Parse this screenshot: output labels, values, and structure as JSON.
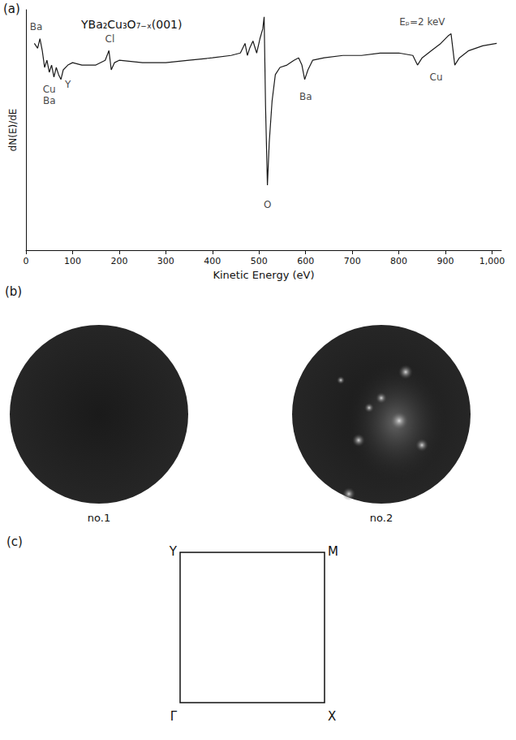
{
  "chart_data": {
    "type": "line",
    "title": "YBa₂Cu₃O₇₋ₓ(001)",
    "x_label": "Kinetic Energy (eV)",
    "y_label": "dN(E)/dE",
    "x": [
      18,
      25,
      30,
      35,
      40,
      45,
      50,
      55,
      60,
      65,
      70,
      75,
      80,
      90,
      100,
      120,
      150,
      170,
      178,
      183,
      190,
      200,
      250,
      300,
      350,
      400,
      440,
      460,
      470,
      475,
      480,
      487,
      495,
      502,
      508,
      511,
      514,
      518,
      522,
      528,
      535,
      545,
      560,
      575,
      585,
      592,
      598,
      605,
      615,
      640,
      680,
      720,
      760,
      800,
      830,
      840,
      850,
      870,
      890,
      905,
      912,
      920,
      930,
      950,
      980,
      1010
    ],
    "values": [
      86,
      84,
      88,
      83,
      76,
      79,
      74,
      77,
      72,
      76,
      73,
      71,
      75,
      77,
      78,
      77,
      77,
      79,
      83,
      75,
      78,
      79,
      78,
      78,
      79,
      80,
      81,
      82,
      86,
      81,
      84,
      87,
      82,
      88,
      92,
      97,
      60,
      27,
      45,
      62,
      73,
      76,
      77,
      79,
      80,
      77,
      71,
      75,
      79,
      80,
      81,
      81,
      82,
      82,
      81,
      77,
      80,
      83,
      86,
      89,
      90,
      77,
      80,
      83,
      85,
      86
    ],
    "color": "#1a1a1a",
    "xlim": [
      0,
      1020
    ],
    "xticks": [
      0,
      100,
      200,
      300,
      400,
      500,
      600,
      700,
      800,
      900,
      1000
    ],
    "ylim": [
      0,
      100
    ],
    "yticks": [],
    "tick_labels": "x",
    "grid": false,
    "annotations": [
      {
        "text": "Ba",
        "x": 22,
        "y": 93
      },
      {
        "text": "Cu",
        "x": 50,
        "y": 67
      },
      {
        "text": "Ba",
        "x": 50,
        "y": 62
      },
      {
        "text": "Y",
        "x": 90,
        "y": 69
      },
      {
        "text": "Cl",
        "x": 180,
        "y": 88
      },
      {
        "text": "O",
        "x": 518,
        "y": 19
      },
      {
        "text": "Ba",
        "x": 600,
        "y": 64
      },
      {
        "text": "Cu",
        "x": 880,
        "y": 72
      },
      {
        "text": "Eₚ=2 keV",
        "x": 850,
        "y": 95
      }
    ]
  },
  "panels": [
    {
      "label": "(a)"
    },
    {
      "label": "(b)",
      "images": [
        "no.1",
        "no.2"
      ]
    },
    {
      "label": "(c)",
      "corners": {
        "top_left": "Y",
        "top_right": "M",
        "bottom_left": "Γ",
        "bottom_right": "X"
      }
    }
  ]
}
